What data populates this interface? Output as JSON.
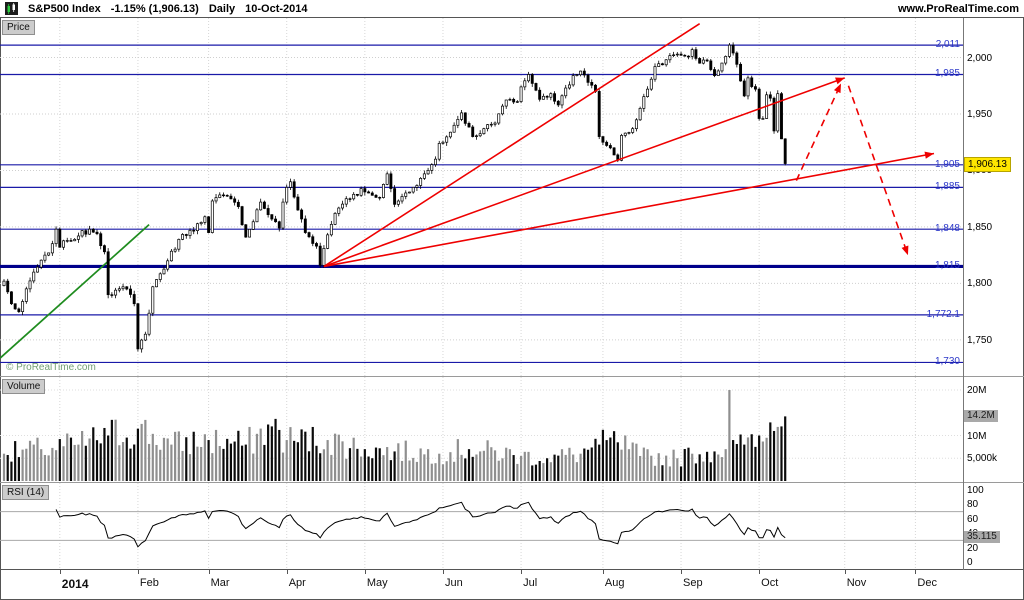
{
  "header": {
    "symbol": "S&P500 Index",
    "change": "-1.15% (1,906.13)",
    "timeframe": "Daily",
    "date": "10-Oct-2014",
    "website": "www.ProRealTime.com"
  },
  "panels": {
    "price": {
      "label": "Price",
      "watermark": "© ProRealTime.com",
      "current_price_label": "1,906.13"
    },
    "volume": {
      "label": "Volume",
      "current_label": "14.2M"
    },
    "rsi": {
      "label": "RSI (14)",
      "current_label": "35.115"
    }
  },
  "colors": {
    "level_line": "#1a1aa8",
    "thick_level_line": "#00008b",
    "red_drawing": "#ee0000",
    "green_drawing": "#1f8c1f",
    "grid": "#d6d6d6",
    "current_price_bg": "#ffe600"
  },
  "chart_data": {
    "type": "candlestick",
    "title": "S&P500 Index Daily 10-Oct-2014",
    "last_close": 1906.13,
    "change_pct": -1.15,
    "days_total": 211,
    "price_axis": {
      "min": 1718,
      "max": 2035,
      "ticks": [
        {
          "v": 2000,
          "label": "2,000"
        },
        {
          "v": 1950,
          "label": "1,950"
        },
        {
          "v": 1900,
          "label": "1,900"
        },
        {
          "v": 1850,
          "label": "1,850"
        },
        {
          "v": 1800,
          "label": "1,800"
        },
        {
          "v": 1750,
          "label": "1,750"
        }
      ]
    },
    "levels": [
      {
        "price": 2011,
        "label": "2,011",
        "thick": false
      },
      {
        "price": 1985,
        "label": "1,985",
        "thick": false
      },
      {
        "price": 1905,
        "label": "1,905",
        "thick": false
      },
      {
        "price": 1885,
        "label": "1,885",
        "thick": false
      },
      {
        "price": 1848,
        "label": "1,848",
        "thick": false
      },
      {
        "price": 1815,
        "label": "1,815",
        "thick": true
      },
      {
        "price": 1772.1,
        "label": "1,772.1",
        "thick": false
      },
      {
        "price": 1730,
        "label": "1,730",
        "thick": false
      }
    ],
    "volume_axis": {
      "unit": "M",
      "current": 14.2,
      "ticks": [
        {
          "v": 20,
          "label": "20M"
        },
        {
          "v": 10,
          "label": "10M"
        },
        {
          "v": 5,
          "label": "5,000k"
        }
      ]
    },
    "rsi_axis": {
      "period": 14,
      "current": 35.115,
      "ticks": [
        {
          "v": 100,
          "label": "100"
        },
        {
          "v": 80,
          "label": "80"
        },
        {
          "v": 60,
          "label": "60"
        },
        {
          "v": 40,
          "label": "40"
        },
        {
          "v": 20,
          "label": "20"
        },
        {
          "v": 0,
          "label": "0"
        }
      ],
      "guides": [
        70,
        30
      ]
    },
    "time_axis": [
      {
        "label": "2014",
        "day": 15,
        "bold": true
      },
      {
        "label": "Feb",
        "day": 36,
        "bold": false
      },
      {
        "label": "Mar",
        "day": 55,
        "bold": false
      },
      {
        "label": "Apr",
        "day": 76,
        "bold": false
      },
      {
        "label": "May",
        "day": 97,
        "bold": false
      },
      {
        "label": "Jun",
        "day": 118,
        "bold": false
      },
      {
        "label": "Jul",
        "day": 139,
        "bold": false
      },
      {
        "label": "Aug",
        "day": 161,
        "bold": false
      },
      {
        "label": "Sep",
        "day": 182,
        "bold": false
      },
      {
        "label": "Oct",
        "day": 203,
        "bold": false
      },
      {
        "label": "Nov",
        "day": 226,
        "bold": false
      },
      {
        "label": "Dec",
        "day": 245,
        "bold": false
      }
    ],
    "close_anchors": [
      [
        0,
        1802
      ],
      [
        2,
        1782
      ],
      [
        4,
        1775
      ],
      [
        8,
        1810
      ],
      [
        12,
        1827
      ],
      [
        14,
        1848
      ],
      [
        15,
        1832
      ],
      [
        17,
        1838
      ],
      [
        20,
        1842
      ],
      [
        23,
        1848
      ],
      [
        25,
        1844
      ],
      [
        27,
        1828
      ],
      [
        28,
        1790
      ],
      [
        30,
        1794
      ],
      [
        33,
        1795
      ],
      [
        35,
        1782
      ],
      [
        36,
        1742
      ],
      [
        38,
        1755
      ],
      [
        40,
        1797
      ],
      [
        44,
        1820
      ],
      [
        47,
        1839
      ],
      [
        50,
        1847
      ],
      [
        53,
        1854
      ],
      [
        54,
        1859
      ],
      [
        55,
        1845
      ],
      [
        56,
        1873
      ],
      [
        59,
        1878
      ],
      [
        63,
        1868
      ],
      [
        65,
        1841
      ],
      [
        69,
        1872
      ],
      [
        72,
        1857
      ],
      [
        74,
        1849
      ],
      [
        75,
        1872
      ],
      [
        76,
        1885
      ],
      [
        77,
        1890
      ],
      [
        79,
        1865
      ],
      [
        81,
        1845
      ],
      [
        84,
        1833
      ],
      [
        85,
        1816
      ],
      [
        86,
        1831
      ],
      [
        87,
        1843
      ],
      [
        89,
        1862
      ],
      [
        92,
        1875
      ],
      [
        95,
        1878
      ],
      [
        96,
        1884
      ],
      [
        97,
        1881
      ],
      [
        99,
        1878
      ],
      [
        101,
        1876
      ],
      [
        103,
        1897
      ],
      [
        105,
        1870
      ],
      [
        107,
        1877
      ],
      [
        110,
        1885
      ],
      [
        112,
        1893
      ],
      [
        114,
        1900
      ],
      [
        116,
        1910
      ],
      [
        117,
        1924
      ],
      [
        118,
        1925
      ],
      [
        121,
        1940
      ],
      [
        123,
        1951
      ],
      [
        126,
        1930
      ],
      [
        129,
        1937
      ],
      [
        132,
        1942
      ],
      [
        134,
        1957
      ],
      [
        136,
        1963
      ],
      [
        138,
        1961
      ],
      [
        139,
        1974
      ],
      [
        141,
        1985
      ],
      [
        144,
        1963
      ],
      [
        147,
        1968
      ],
      [
        149,
        1958
      ],
      [
        151,
        1973
      ],
      [
        153,
        1984
      ],
      [
        155,
        1988
      ],
      [
        157,
        1978
      ],
      [
        159,
        1970
      ],
      [
        160,
        1930
      ],
      [
        161,
        1925
      ],
      [
        163,
        1920
      ],
      [
        165,
        1909
      ],
      [
        166,
        1931
      ],
      [
        169,
        1937
      ],
      [
        171,
        1955
      ],
      [
        173,
        1972
      ],
      [
        175,
        1992
      ],
      [
        178,
        1998
      ],
      [
        181,
        2003
      ],
      [
        182,
        2002
      ],
      [
        184,
        2001
      ],
      [
        185,
        2007
      ],
      [
        187,
        1995
      ],
      [
        189,
        1997
      ],
      [
        191,
        1984
      ],
      [
        194,
        2001
      ],
      [
        195,
        2011
      ],
      [
        197,
        1994
      ],
      [
        199,
        1966
      ],
      [
        200,
        1982
      ],
      [
        202,
        1972
      ],
      [
        203,
        1946
      ],
      [
        204,
        1946
      ],
      [
        205,
        1967
      ],
      [
        206,
        1964
      ],
      [
        207,
        1935
      ],
      [
        208,
        1968
      ],
      [
        209,
        1928
      ],
      [
        210,
        1906.13
      ]
    ],
    "volume_anchors": [
      [
        0,
        6
      ],
      [
        10,
        7
      ],
      [
        20,
        8
      ],
      [
        28,
        10
      ],
      [
        36,
        11.5
      ],
      [
        45,
        8
      ],
      [
        55,
        9
      ],
      [
        65,
        8
      ],
      [
        72,
        12
      ],
      [
        76,
        9
      ],
      [
        87,
        9
      ],
      [
        97,
        7
      ],
      [
        105,
        6.5
      ],
      [
        117,
        6
      ],
      [
        125,
        7
      ],
      [
        139,
        5.5
      ],
      [
        146,
        5
      ],
      [
        155,
        6
      ],
      [
        160,
        8
      ],
      [
        165,
        8.5
      ],
      [
        171,
        5.5
      ],
      [
        181,
        5
      ],
      [
        185,
        6
      ],
      [
        191,
        6.5
      ],
      [
        194,
        7
      ],
      [
        195,
        20
      ],
      [
        196,
        9
      ],
      [
        199,
        8
      ],
      [
        202,
        7.5
      ],
      [
        203,
        10
      ],
      [
        205,
        9.5
      ],
      [
        207,
        11
      ],
      [
        209,
        12
      ],
      [
        210,
        14.2
      ]
    ],
    "annotations": {
      "green_trendline": {
        "from": [
          -1,
          1734
        ],
        "to": [
          39,
          1852
        ]
      },
      "fan_origin": [
        86,
        1815
      ],
      "fan_lines": [
        {
          "to": [
            187,
            2030
          ],
          "arrow": false
        },
        {
          "to": [
            226,
            1982
          ],
          "arrow": true
        },
        {
          "to": [
            250,
            1915
          ],
          "arrow": true
        }
      ],
      "dashed_arrows": [
        {
          "from": [
            213,
            1891
          ],
          "to": [
            225,
            1977
          ]
        },
        {
          "from": [
            227,
            1975
          ],
          "to": [
            243,
            1825
          ]
        }
      ]
    }
  }
}
